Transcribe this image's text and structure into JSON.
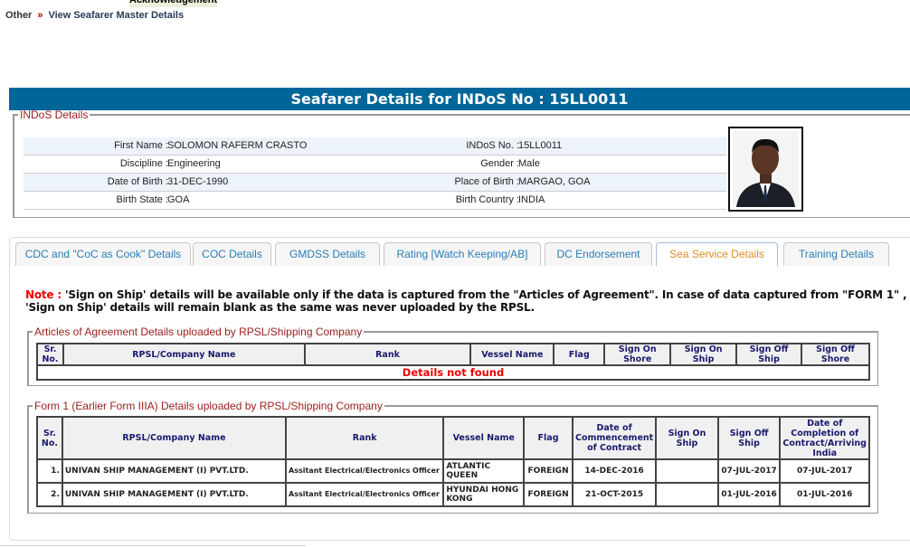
{
  "top_link": "Acknowledgement",
  "breadcrumb": {
    "root": "Other",
    "sep": "»",
    "current": "View Seafarer Master Details"
  },
  "title": "Seafarer Details for INDoS No : 15LL0011",
  "indos": {
    "legend": "INDoS Details",
    "rows": [
      {
        "l1": "First Name :",
        "v1": "SOLOMON RAFERM CRASTO",
        "l2": "INDoS No. :",
        "v2": "15LL0011"
      },
      {
        "l1": "Discipline :",
        "v1": "Engineering",
        "l2": "Gender :",
        "v2": "Male"
      },
      {
        "l1": "Date of Birth :",
        "v1": "31-DEC-1990",
        "l2": "Place of Birth :",
        "v2": "MARGAO, GOA"
      },
      {
        "l1": "Birth State :",
        "v1": "GOA",
        "l2": "Birth Country :",
        "v2": "INDIA"
      }
    ]
  },
  "tabs": [
    "CDC and \"CoC as Cook\" Details",
    "COC Details",
    "GMDSS Details",
    "Rating [Watch Keeping/AB]",
    "DC Endorsement",
    "Sea Service Details",
    "Training Details"
  ],
  "active_tab": "Sea Service Details",
  "note": {
    "label": "Note :",
    "text": " 'Sign on Ship' details will be available only if the data is captured from the \"Articles of Agreement\". In case of data captured from \"FORM 1\" , 'Sign on Ship' details will remain blank as the same was never uploaded by the RPSL."
  },
  "aoa": {
    "legend": "Articles of Agreement Details uploaded by RPSL/Shipping Company",
    "headers": [
      "Sr. No.",
      "RPSL/Company Name",
      "Rank",
      "Vessel Name",
      "Flag",
      "Sign On Shore",
      "Sign On Ship",
      "Sign Off Ship",
      "Sign Off Shore"
    ],
    "empty": "Details not found"
  },
  "form1": {
    "legend": "Form 1 (Earlier Form IIIA) Details uploaded by RPSL/Shipping Company",
    "headers": [
      "Sr. No.",
      "RPSL/Company Name",
      "Rank",
      "Vessel Name",
      "Flag",
      "Date of Commencement of Contract",
      "Sign On Ship",
      "Sign Off Ship",
      "Date of Completion of Contract/Arriving India"
    ],
    "rows": [
      [
        "1.",
        "UNIVAN SHIP MANAGEMENT (I) PVT.LTD.",
        "Assitant Electrical/Electronics Officer",
        "ATLANTIC QUEEN",
        "FOREIGN",
        "14-DEC-2016",
        "",
        "07-JUL-2017",
        "07-JUL-2017"
      ],
      [
        "2.",
        "UNIVAN SHIP MANAGEMENT (I) PVT.LTD.",
        "Assitant Electrical/Electronics Officer",
        "HYUNDAI HONG KONG",
        "FOREIGN",
        "21-OCT-2015",
        "",
        "01-JUL-2016",
        "01-JUL-2016"
      ]
    ]
  },
  "colors": {
    "header_bar": "#006699",
    "legend": "#9b1c1c",
    "tab_text": "#2a7db5",
    "active_tab": "#e38b22",
    "error": "#ee0000"
  }
}
